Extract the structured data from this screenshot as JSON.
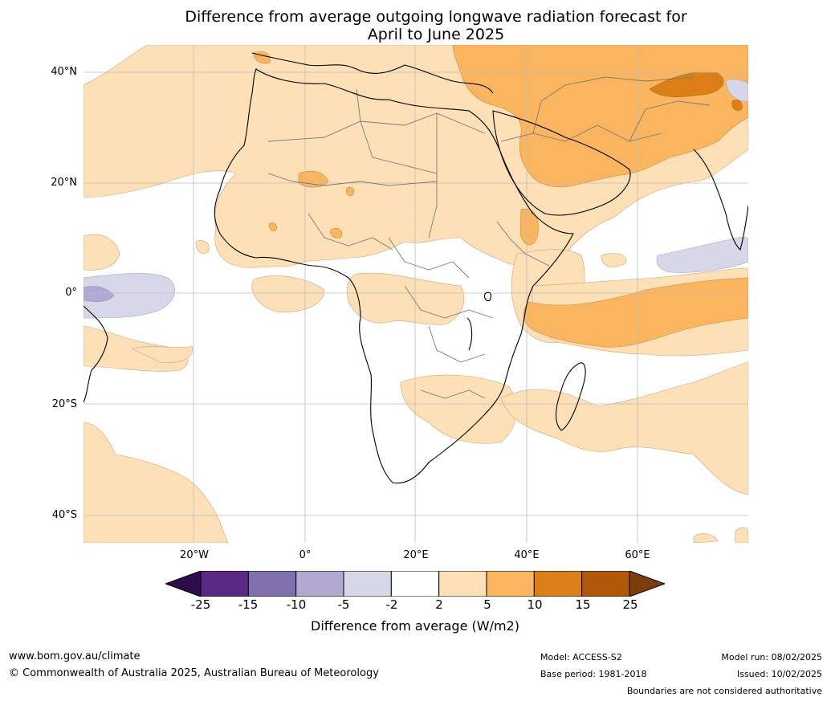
{
  "title_line1": "Difference from average outgoing longwave radiation forecast for",
  "title_line2": "April to June 2025",
  "lat_labels": [
    "40°N",
    "20°N",
    "0°",
    "20°S",
    "40°S"
  ],
  "lon_labels": [
    "20°W",
    "0°",
    "20°E",
    "40°E",
    "60°E"
  ],
  "colorbar": {
    "ticks": [
      "-25",
      "-15",
      "-10",
      "-5",
      "-2",
      "2",
      "5",
      "10",
      "15",
      "25"
    ],
    "colors": [
      "#2d0c4e",
      "#582a86",
      "#8070ac",
      "#b1a9d1",
      "#d7d7ea",
      "#ffffff",
      "#fde0b6",
      "#fbb55e",
      "#dc7f16",
      "#b05807",
      "#7c3d0c"
    ],
    "title": "Difference from average (W/m2)"
  },
  "footer": {
    "website": "www.bom.gov.au/climate",
    "copyright": "© Commonwealth of Australia 2025, Australian Bureau of Meteorology",
    "model": "Model: ACCESS-S2",
    "base_period": "Base period: 1981-2018",
    "model_run": "Model run: 08/02/2025",
    "issued": "Issued: 10/02/2025",
    "disclaimer": "Boundaries are not considered authoritative"
  }
}
